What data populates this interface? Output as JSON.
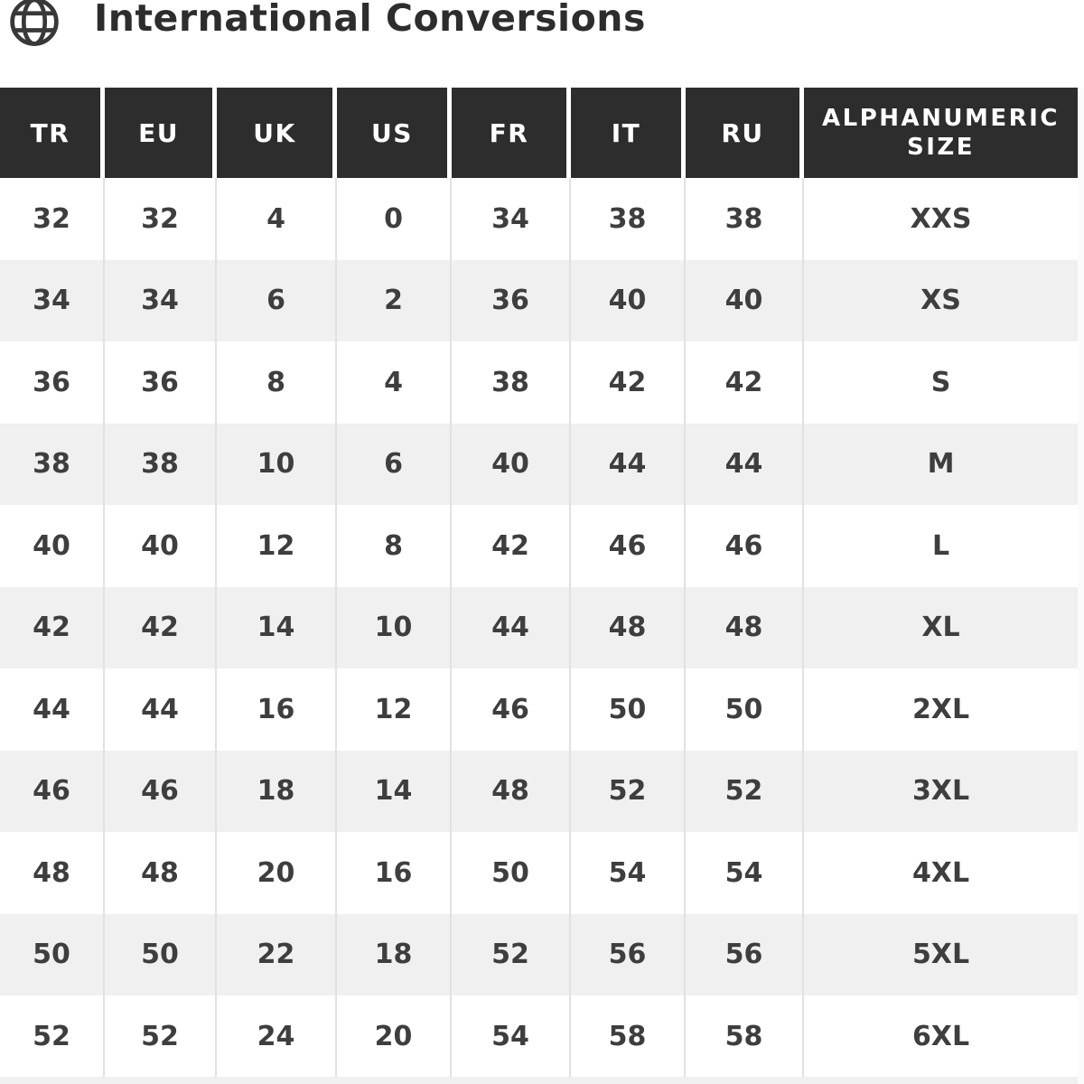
{
  "page": {
    "title": "International Conversions"
  },
  "icons": {
    "globe": "globe-icon"
  },
  "table": {
    "columns": [
      "TR",
      "EU",
      "UK",
      "US",
      "FR",
      "IT",
      "RU",
      "ALPHANUMERIC SIZE"
    ],
    "rows": [
      [
        "32",
        "32",
        "4",
        "0",
        "34",
        "38",
        "38",
        "XXS"
      ],
      [
        "34",
        "34",
        "6",
        "2",
        "36",
        "40",
        "40",
        "XS"
      ],
      [
        "36",
        "36",
        "8",
        "4",
        "38",
        "42",
        "42",
        "S"
      ],
      [
        "38",
        "38",
        "10",
        "6",
        "40",
        "44",
        "44",
        "M"
      ],
      [
        "40",
        "40",
        "12",
        "8",
        "42",
        "46",
        "46",
        "L"
      ],
      [
        "42",
        "42",
        "14",
        "10",
        "44",
        "48",
        "48",
        "XL"
      ],
      [
        "44",
        "44",
        "16",
        "12",
        "46",
        "50",
        "50",
        "2XL"
      ],
      [
        "46",
        "46",
        "18",
        "14",
        "48",
        "52",
        "52",
        "3XL"
      ],
      [
        "48",
        "48",
        "20",
        "16",
        "50",
        "54",
        "54",
        "4XL"
      ],
      [
        "50",
        "50",
        "22",
        "18",
        "52",
        "56",
        "56",
        "5XL"
      ],
      [
        "52",
        "52",
        "24",
        "20",
        "54",
        "58",
        "58",
        "6XL"
      ]
    ]
  },
  "colors": {
    "header_bg": "#2d2d2d",
    "header_text": "#ffffff",
    "row_bg": "#ffffff",
    "row_alt_bg": "#f1f0f0",
    "cell_text": "#3e3e3e",
    "separator": "#e2e1e1",
    "title_text": "#2d2d2d",
    "icon_stroke": "#383838"
  }
}
